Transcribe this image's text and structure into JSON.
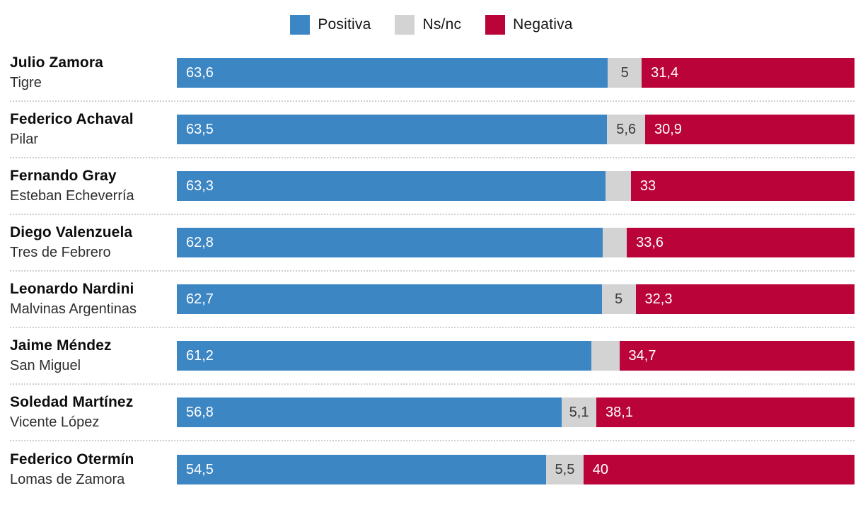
{
  "legend": {
    "items": [
      {
        "label": "Positiva",
        "color": "#3d86c4"
      },
      {
        "label": "Ns/nc",
        "color": "#d3d3d3"
      },
      {
        "label": "Negativa",
        "color": "#ba0338"
      }
    ]
  },
  "chart_data": {
    "type": "bar",
    "orientation": "horizontal",
    "stacked": true,
    "unit": "percent",
    "xlim": [
      0,
      100
    ],
    "legend_position": "top-center",
    "series_names": [
      "Positiva",
      "Ns/nc",
      "Negativa"
    ],
    "colors": {
      "positiva": "#3d86c4",
      "ns_nc": "#d3d3d3",
      "negativa": "#ba0338"
    },
    "rows": [
      {
        "name": "Julio Zamora",
        "district": "Tigre",
        "positiva": 63.6,
        "ns_nc": 5.0,
        "negativa": 31.4,
        "labels": {
          "positiva": "63,6",
          "ns_nc": "5",
          "negativa": "31,4"
        }
      },
      {
        "name": "Federico Achaval",
        "district": "Pilar",
        "positiva": 63.5,
        "ns_nc": 5.6,
        "negativa": 30.9,
        "labels": {
          "positiva": "63,5",
          "ns_nc": "5,6",
          "negativa": "30,9"
        }
      },
      {
        "name": "Fernando Gray",
        "district": "Esteban Echeverría",
        "positiva": 63.3,
        "ns_nc": 3.7,
        "negativa": 33.0,
        "labels": {
          "positiva": "63,3",
          "ns_nc": "",
          "negativa": "33"
        }
      },
      {
        "name": "Diego Valenzuela",
        "district": "Tres de Febrero",
        "positiva": 62.8,
        "ns_nc": 3.6,
        "negativa": 33.6,
        "labels": {
          "positiva": "62,8",
          "ns_nc": "",
          "negativa": "33,6"
        }
      },
      {
        "name": "Leonardo Nardini",
        "district": "Malvinas Argentinas",
        "positiva": 62.7,
        "ns_nc": 5.0,
        "negativa": 32.3,
        "labels": {
          "positiva": "62,7",
          "ns_nc": "5",
          "negativa": "32,3"
        }
      },
      {
        "name": "Jaime Méndez",
        "district": "San Miguel",
        "positiva": 61.2,
        "ns_nc": 4.1,
        "negativa": 34.7,
        "labels": {
          "positiva": "61,2",
          "ns_nc": "",
          "negativa": "34,7"
        }
      },
      {
        "name": "Soledad Martínez",
        "district": "Vicente López",
        "positiva": 56.8,
        "ns_nc": 5.1,
        "negativa": 38.1,
        "labels": {
          "positiva": "56,8",
          "ns_nc": "5,1",
          "negativa": "38,1"
        }
      },
      {
        "name": "Federico Otermín",
        "district": "Lomas de Zamora",
        "positiva": 54.5,
        "ns_nc": 5.5,
        "negativa": 40.0,
        "labels": {
          "positiva": "54,5",
          "ns_nc": "5,5",
          "negativa": "40"
        }
      }
    ]
  }
}
